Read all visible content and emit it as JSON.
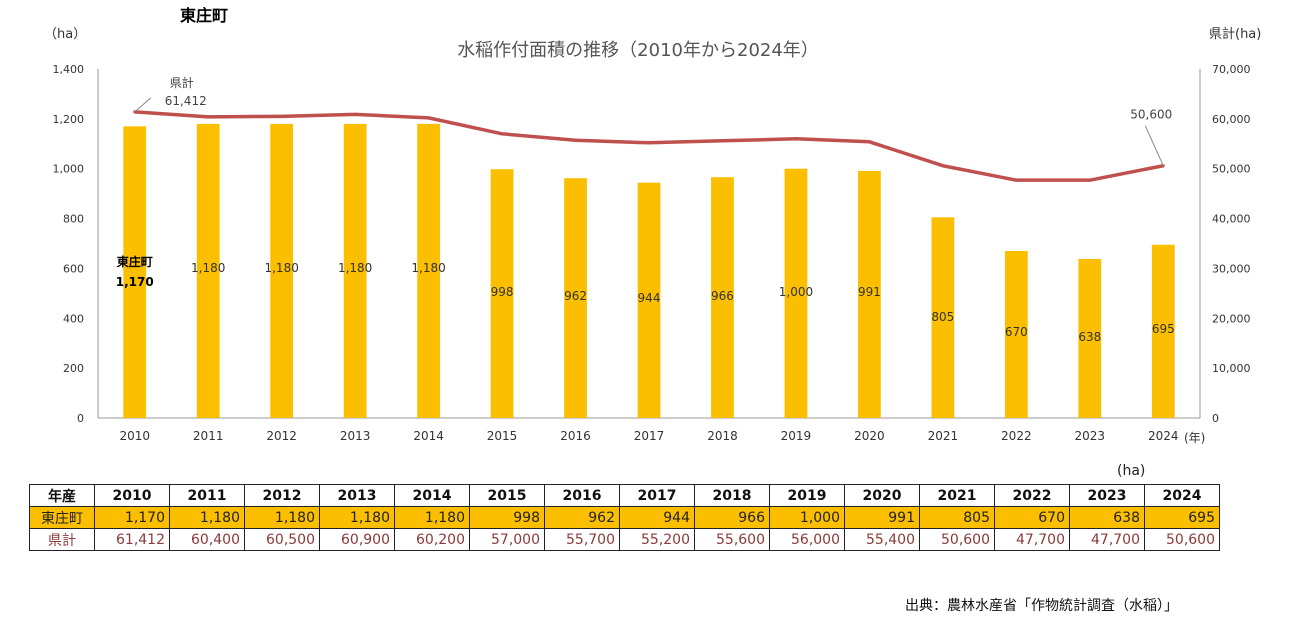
{
  "town_name": "東庄町",
  "chart_data": {
    "type": "bar",
    "title": "水稲作付面積の推移（2010年から2024年）",
    "ylabel_left": "（ha）",
    "ylabel_right": "県計(ha)",
    "xlabel": "(年)",
    "categories": [
      "2010",
      "2011",
      "2012",
      "2013",
      "2014",
      "2015",
      "2016",
      "2017",
      "2018",
      "2019",
      "2020",
      "2021",
      "2022",
      "2023",
      "2024"
    ],
    "left_ticks": [
      "0",
      "200",
      "400",
      "600",
      "800",
      "1,000",
      "1,200",
      "1,400"
    ],
    "right_ticks": [
      "0",
      "10,000",
      "20,000",
      "30,000",
      "40,000",
      "50,000",
      "60,000",
      "70,000"
    ],
    "ylim_left": [
      0,
      1400
    ],
    "ylim_right": [
      0,
      70000
    ],
    "series": [
      {
        "name": "東庄町",
        "type": "bar",
        "axis": "left",
        "color": "#fbbf00",
        "values": [
          1170,
          1180,
          1180,
          1180,
          1180,
          998,
          962,
          944,
          966,
          1000,
          991,
          805,
          670,
          638,
          695
        ],
        "labels": [
          "1,170",
          "1,180",
          "1,180",
          "1,180",
          "1,180",
          "998",
          "962",
          "944",
          "966",
          "1,000",
          "991",
          "805",
          "670",
          "638",
          "695"
        ]
      },
      {
        "name": "県計",
        "type": "line",
        "axis": "right",
        "color": "#c0504d",
        "values": [
          61412,
          60400,
          60500,
          60900,
          60200,
          57000,
          55700,
          55200,
          55600,
          56000,
          55400,
          50600,
          47700,
          47700,
          50600
        ]
      }
    ],
    "annotations": {
      "first_name": "県計",
      "first_value": "61,412",
      "last_value": "50,600",
      "bar_first_name": "東庄町",
      "bar_first_value": "1,170"
    },
    "grid": false,
    "legend": "none"
  },
  "table": {
    "header_label": "年産",
    "unit": "(ha)",
    "years": [
      "2010",
      "2011",
      "2012",
      "2013",
      "2014",
      "2015",
      "2016",
      "2017",
      "2018",
      "2019",
      "2020",
      "2021",
      "2022",
      "2023",
      "2024"
    ],
    "rows": [
      {
        "label": "東庄町",
        "values": [
          "1,170",
          "1,180",
          "1,180",
          "1,180",
          "1,180",
          "998",
          "962",
          "944",
          "966",
          "1,000",
          "991",
          "805",
          "670",
          "638",
          "695"
        ]
      },
      {
        "label": "県計",
        "values": [
          "61,412",
          "60,400",
          "60,500",
          "60,900",
          "60,200",
          "57,000",
          "55,700",
          "55,200",
          "55,600",
          "56,000",
          "55,400",
          "50,600",
          "47,700",
          "47,700",
          "50,600"
        ]
      }
    ]
  },
  "source": "出典：農林水産省「作物統計調査（水稲）」"
}
